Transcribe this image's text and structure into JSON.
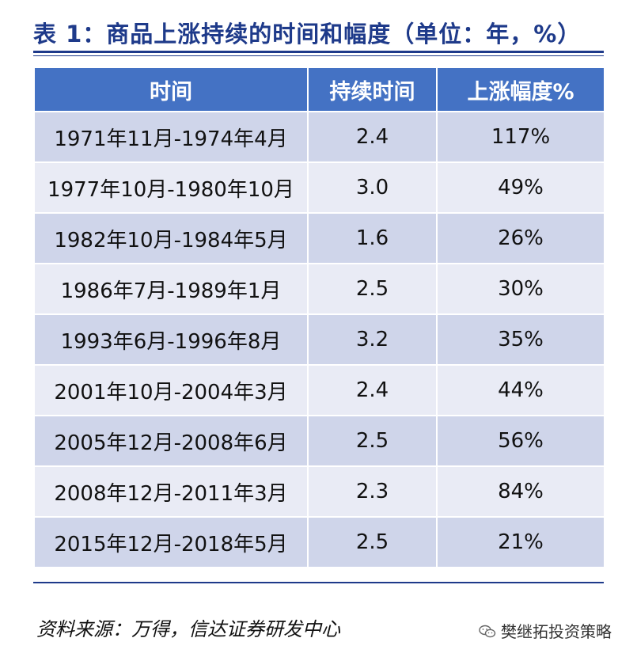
{
  "title": "表 1：商品上涨持续的时间和幅度（单位：年，%）",
  "table": {
    "headers": [
      "时间",
      "持续时间",
      "上涨幅度%"
    ],
    "rows": [
      [
        "1971年11月-1974年4月",
        "2.4",
        "117%"
      ],
      [
        "1977年10月-1980年10月",
        "3.0",
        "49%"
      ],
      [
        "1982年10月-1984年5月",
        "1.6",
        "26%"
      ],
      [
        "1986年7月-1989年1月",
        "2.5",
        "30%"
      ],
      [
        "1993年6月-1996年8月",
        "3.2",
        "35%"
      ],
      [
        "2001年10月-2004年3月",
        "2.4",
        "44%"
      ],
      [
        "2005年12月-2008年6月",
        "2.5",
        "56%"
      ],
      [
        "2008年12月-2011年3月",
        "2.3",
        "84%"
      ],
      [
        "2015年12月-2018年5月",
        "2.5",
        "21%"
      ]
    ]
  },
  "source": "资料来源：万得，信达证券研发中心",
  "watermark": {
    "icon": "wechat-icon",
    "text": "樊继拓投资策略"
  },
  "colors": {
    "header_bg": "#4472c4",
    "row_odd": "#cfd5ea",
    "row_even": "#e9ebf5",
    "title": "#1e3a8a"
  }
}
